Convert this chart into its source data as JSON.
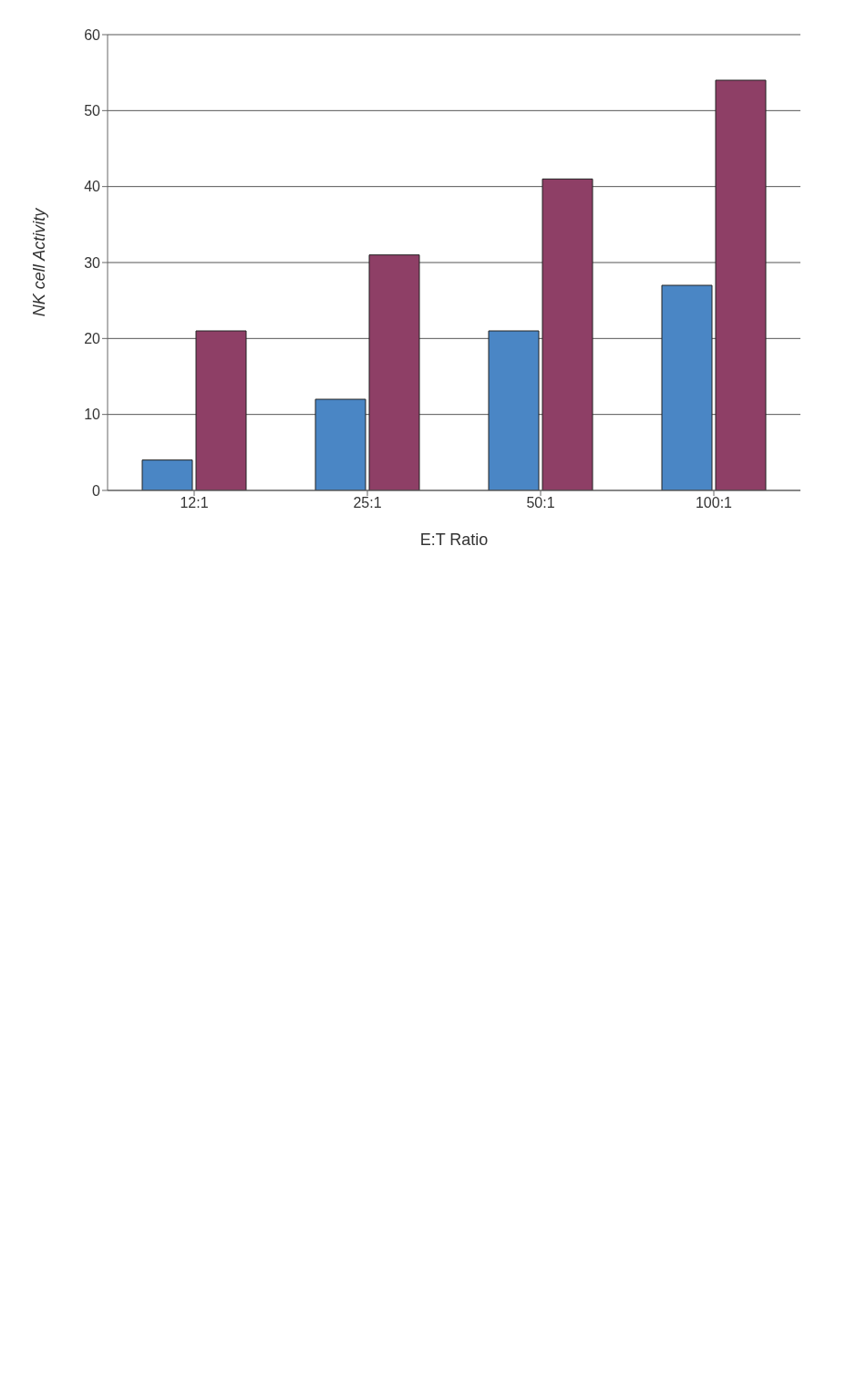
{
  "chart_data": {
    "type": "bar",
    "xlabel": "E:T Ratio",
    "ylabel": "NK cell Activity",
    "categories": [
      "12:1",
      "25:1",
      "50:1",
      "100:1"
    ],
    "series": [
      {
        "color": "#4a86c5",
        "values": [
          4,
          12,
          21,
          27
        ]
      },
      {
        "color": "#8e3f66",
        "values": [
          21,
          31,
          41,
          54
        ]
      }
    ],
    "ylim": [
      0,
      60
    ],
    "yticks": [
      0,
      10,
      20,
      30,
      40,
      50,
      60
    ],
    "grid": "y"
  }
}
